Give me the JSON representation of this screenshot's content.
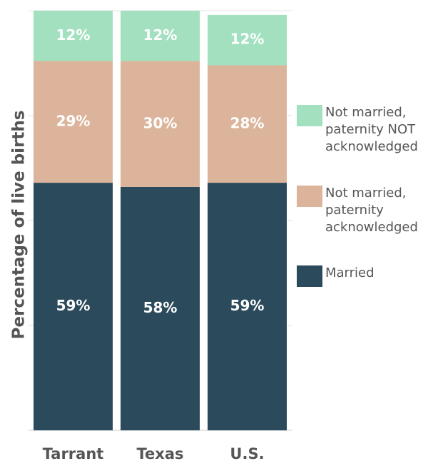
{
  "chart_data": {
    "type": "stacked_bar",
    "y_label": "Percentage of live births",
    "categories": [
      "Tarrant",
      "Texas",
      "U.S."
    ],
    "series": [
      {
        "name": "Married",
        "color": "#2b4a5c",
        "values": [
          59,
          58,
          59
        ],
        "value_labels": [
          "59%",
          "58%",
          "59%"
        ]
      },
      {
        "name": "Not married, paternity acknowledged",
        "color": "#dbb49b",
        "values": [
          29,
          30,
          28
        ],
        "value_labels": [
          "29%",
          "30%",
          "28%"
        ]
      },
      {
        "name": "Not married, paternity NOT acknowledged",
        "color": "#a3e0bf",
        "values": [
          12,
          12,
          12
        ],
        "value_labels": [
          "12%",
          "12%",
          "12%"
        ]
      }
    ],
    "ylim": [
      0,
      100
    ],
    "yticks": [
      0,
      25,
      50,
      75,
      100
    ],
    "legend": "right"
  }
}
